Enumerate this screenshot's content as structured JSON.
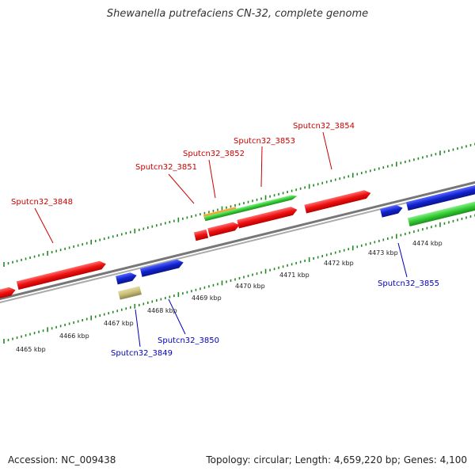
{
  "title": "Shewanella putrefaciens CN-32, complete genome",
  "footer": {
    "accession": "Accession: NC_009438",
    "topology": "Topology: circular; Length: 4,659,220 bp; Genes: 4,100"
  },
  "colors": {
    "forward_cds": "#ee1111",
    "reverse_cds": "#1122cc",
    "forward_rna": "#33cc33",
    "forward_orange": "#ee8811",
    "reverse_khaki": "#c8bd78",
    "backbone": "#888888",
    "tick": "#228822",
    "forward_label": "#cc0000",
    "reverse_label": "#0000bb"
  },
  "kbp_labels": [
    "4465 kbp",
    "4466 kbp",
    "4467 kbp",
    "4468 kbp",
    "4469 kbp",
    "4470 kbp",
    "4471 kbp",
    "4472 kbp",
    "4473 kbp",
    "4474 kbp"
  ],
  "forward_labels": [
    "Sputcn32_3848",
    "Sputcn32_3851",
    "Sputcn32_3852",
    "Sputcn32_3853",
    "Sputcn32_3854"
  ],
  "reverse_labels": [
    "Sputcn32_3849",
    "Sputcn32_3850",
    "Sputcn32_3855"
  ],
  "icons": {
    "feature_shape": "arrow"
  }
}
